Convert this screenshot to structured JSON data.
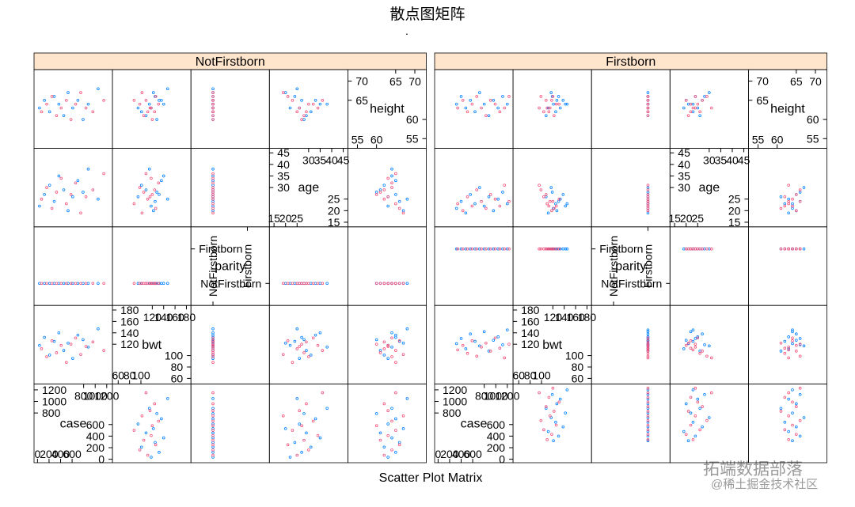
{
  "chart_data": {
    "type": "scatter-matrix",
    "title": "散点图矩阵",
    "subtitle": ".",
    "xlabel": "Scatter Plot Matrix",
    "watermark": [
      "拓端数据部落",
      "@稀土掘金技术社区"
    ],
    "strip_color": "#ffe5cc",
    "variables": [
      {
        "name": "case",
        "lim": [
          -60,
          1300
        ],
        "ticks": [
          0,
          200,
          400,
          600,
          800,
          1000,
          1200
        ]
      },
      {
        "name": "bwt",
        "lim": [
          50,
          188
        ],
        "ticks": [
          60,
          80,
          100,
          120,
          140,
          160,
          180
        ]
      },
      {
        "name": "parity",
        "lim": [
          -0.64,
          1.64
        ],
        "ticks": [
          {
            "value": 0,
            "label": "NotFirstborn"
          },
          {
            "value": 1,
            "label": "Firstborn"
          }
        ]
      },
      {
        "name": "age",
        "lim": [
          13,
          47
        ],
        "ticks": [
          15,
          20,
          25,
          30,
          35,
          40,
          45
        ]
      },
      {
        "name": "height",
        "lim": [
          52.5,
          73
        ],
        "ticks": [
          55,
          60,
          65,
          70
        ]
      }
    ],
    "panels": [
      {
        "name": "NotFirstborn",
        "parity": 0,
        "series": [
          {
            "color": "#0080ff",
            "case": [
              35,
              120,
              210,
              290,
              370,
              455,
              530,
              610,
              700,
              790,
              880,
              1050
            ],
            "bwt": [
              118,
              132,
              101,
              125,
              140,
              109,
              122,
              95,
              136,
              128,
              115,
              147
            ],
            "age": [
              22,
              27,
              31,
              24,
              35,
              29,
              20,
              26,
              33,
              28,
              38,
              25
            ],
            "height": [
              63,
              65,
              62,
              66,
              64,
              61,
              67,
              63,
              65,
              60,
              64,
              68
            ]
          },
          {
            "color": "#f0507a",
            "case": [
              70,
              160,
              250,
              330,
              410,
              500,
              580,
              660,
              750,
              840,
              960,
              1150
            ],
            "bwt": [
              112,
              98,
              126,
              105,
              118,
              88,
              120,
              131,
              102,
              116,
              124,
              109
            ],
            "age": [
              25,
              30,
              21,
              28,
              34,
              23,
              27,
              32,
              19,
              26,
              29,
              36
            ],
            "height": [
              62,
              64,
              66,
              61,
              63,
              65,
              60,
              64,
              67,
              63,
              62,
              65
            ]
          }
        ]
      },
      {
        "name": "Firstborn",
        "parity": 1,
        "series": [
          {
            "color": "#0080ff",
            "case": [
              320,
              400,
              480,
              560,
              640,
              720,
              800,
              880,
              960,
              1040,
              1120,
              1200
            ],
            "bwt": [
              121,
              130,
              112,
              138,
              125,
              117,
              142,
              108,
              127,
              133,
              119,
              145
            ],
            "age": [
              21,
              24,
              19,
              27,
              23,
              30,
              22,
              26,
              20,
              25,
              28,
              23
            ],
            "height": [
              64,
              66,
              63,
              65,
              62,
              67,
              64,
              61,
              65,
              63,
              66,
              64
            ]
          },
          {
            "color": "#f0507a",
            "case": [
              340,
              430,
              510,
              590,
              670,
              750,
              830,
              910,
              990,
              1070,
              1150,
              1230
            ],
            "bwt": [
              110,
              118,
              104,
              126,
              99,
              115,
              122,
              108,
              131,
              113,
              96,
              120
            ],
            "age": [
              23,
              20,
              26,
              22,
              29,
              24,
              21,
              27,
              25,
              22,
              31,
              24
            ],
            "height": [
              63,
              65,
              62,
              64,
              66,
              63,
              61,
              65,
              64,
              62,
              63,
              66
            ]
          }
        ]
      }
    ]
  }
}
